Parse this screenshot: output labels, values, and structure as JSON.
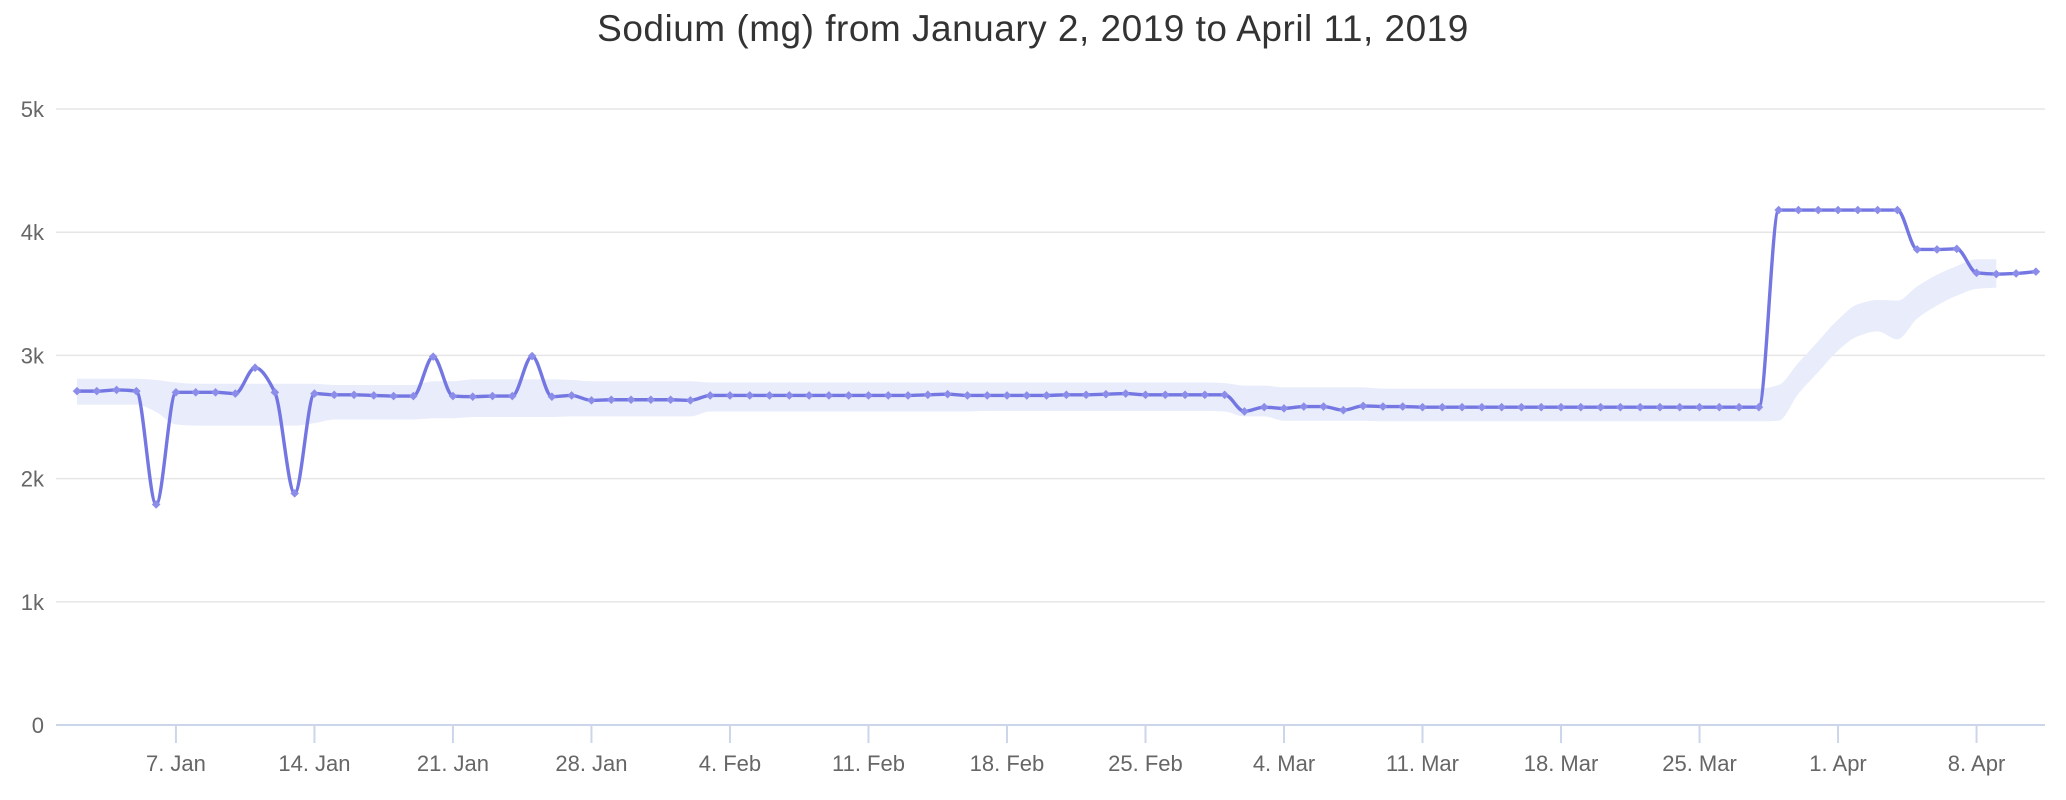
{
  "chart_data": {
    "type": "line",
    "title": "Sodium (mg) from January 2, 2019 to April 11, 2019",
    "grid": true,
    "legend": "none",
    "x_axis": {
      "tick_labels": [
        "7. Jan",
        "14. Jan",
        "21. Jan",
        "28. Jan",
        "4. Feb",
        "11. Feb",
        "18. Feb",
        "25. Feb",
        "4. Mar",
        "11. Mar",
        "18. Mar",
        "25. Mar",
        "1. Apr",
        "8. Apr"
      ],
      "tick_day_indices": [
        5,
        12,
        19,
        26,
        33,
        40,
        47,
        54,
        61,
        68,
        75,
        82,
        89,
        96
      ],
      "start_label_in_title": "January 2, 2019",
      "end_label_in_title": "April 11, 2019",
      "point_frequency": "daily"
    },
    "y_axis": {
      "tick_labels": [
        "0",
        "1k",
        "2k",
        "3k",
        "4k",
        "5k"
      ],
      "tick_values": [
        0,
        1000,
        2000,
        3000,
        4000,
        5000
      ],
      "range": [
        0,
        5000
      ]
    },
    "series": [
      {
        "name": "Sodium (mg)",
        "type": "spline",
        "values": [
          2710,
          2710,
          2720,
          2710,
          1790,
          2700,
          2700,
          2700,
          2690,
          2900,
          2700,
          1880,
          2690,
          2680,
          2680,
          2675,
          2670,
          2670,
          2990,
          2670,
          2665,
          2670,
          2670,
          2995,
          2665,
          2675,
          2635,
          2640,
          2640,
          2640,
          2640,
          2635,
          2675,
          2675,
          2675,
          2675,
          2675,
          2675,
          2675,
          2675,
          2675,
          2675,
          2675,
          2680,
          2685,
          2675,
          2675,
          2675,
          2675,
          2675,
          2680,
          2680,
          2685,
          2690,
          2680,
          2680,
          2680,
          2680,
          2680,
          2545,
          2580,
          2570,
          2585,
          2585,
          2555,
          2590,
          2585,
          2585,
          2580,
          2580,
          2580,
          2580,
          2580,
          2580,
          2580,
          2580,
          2580,
          2580,
          2580,
          2580,
          2580,
          2580,
          2580,
          2580,
          2580,
          2580,
          4180,
          4180,
          4180,
          4180,
          4180,
          4180,
          4180,
          3860,
          3860,
          3865,
          3670,
          3660,
          3665,
          3680
        ]
      },
      {
        "name": "rolling range band",
        "type": "arearange",
        "upper": [
          2810,
          2810,
          2810,
          2810,
          2800,
          2780,
          2770,
          2770,
          2770,
          2770,
          2770,
          2770,
          2770,
          2760,
          2760,
          2760,
          2760,
          2760,
          2790,
          2790,
          2805,
          2805,
          2805,
          2805,
          2805,
          2800,
          2790,
          2790,
          2790,
          2790,
          2790,
          2790,
          2780,
          2780,
          2780,
          2780,
          2780,
          2780,
          2780,
          2780,
          2780,
          2780,
          2780,
          2780,
          2780,
          2780,
          2780,
          2780,
          2780,
          2780,
          2780,
          2780,
          2780,
          2780,
          2780,
          2780,
          2780,
          2780,
          2775,
          2755,
          2755,
          2740,
          2740,
          2740,
          2740,
          2740,
          2730,
          2730,
          2730,
          2730,
          2730,
          2730,
          2730,
          2730,
          2730,
          2730,
          2730,
          2730,
          2730,
          2730,
          2730,
          2730,
          2730,
          2730,
          2730,
          2730,
          2760,
          2940,
          3115,
          3290,
          3415,
          3450,
          3445,
          3560,
          3655,
          3725,
          3780,
          3780
        ],
        "lower": [
          2600,
          2600,
          2600,
          2600,
          2540,
          2440,
          2430,
          2430,
          2430,
          2430,
          2430,
          2430,
          2450,
          2480,
          2480,
          2480,
          2480,
          2480,
          2490,
          2490,
          2500,
          2500,
          2500,
          2500,
          2500,
          2505,
          2505,
          2505,
          2505,
          2505,
          2505,
          2505,
          2545,
          2545,
          2545,
          2545,
          2545,
          2545,
          2545,
          2545,
          2545,
          2545,
          2545,
          2545,
          2545,
          2545,
          2550,
          2550,
          2550,
          2550,
          2550,
          2550,
          2550,
          2550,
          2550,
          2550,
          2550,
          2550,
          2545,
          2505,
          2505,
          2470,
          2470,
          2470,
          2470,
          2470,
          2465,
          2465,
          2465,
          2465,
          2465,
          2465,
          2465,
          2465,
          2465,
          2465,
          2465,
          2465,
          2465,
          2465,
          2465,
          2465,
          2465,
          2465,
          2465,
          2465,
          2470,
          2690,
          2865,
          3040,
          3155,
          3195,
          3130,
          3300,
          3405,
          3485,
          3540,
          3550
        ]
      }
    ],
    "colors": {
      "line": "#7477e2",
      "marker": "#8b8de9",
      "band": "#e8ecfb",
      "grid": "#e6e6e6",
      "axis": "#ccd6eb",
      "label": "#666666",
      "title": "#333333",
      "background": "#ffffff"
    }
  }
}
